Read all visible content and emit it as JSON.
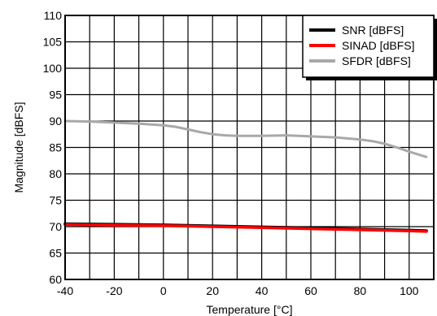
{
  "chart_data": {
    "type": "line",
    "title": "",
    "xlabel": "Temperature [°C]",
    "ylabel": "Magnitude [dBFS]",
    "xlim": [
      -40,
      110
    ],
    "ylim": [
      60,
      110
    ],
    "x_ticks": [
      -40,
      -20,
      0,
      20,
      40,
      60,
      80,
      100
    ],
    "y_ticks": [
      60,
      65,
      70,
      75,
      80,
      85,
      90,
      95,
      100,
      105,
      110
    ],
    "x_tick_labels": [
      "-40",
      "-20",
      "0",
      "20",
      "40",
      "60",
      "80",
      "100"
    ],
    "y_tick_labels": [
      "60",
      "65",
      "70",
      "75",
      "80",
      "85",
      "90",
      "95",
      "100",
      "105",
      "110"
    ],
    "x_minor_step": 10,
    "grid": true,
    "legend_position": "top-right",
    "series": [
      {
        "name": "SNR [dBFS]",
        "color": "#000000",
        "x": [
          -40,
          -20,
          0,
          20,
          40,
          60,
          80,
          100,
          107
        ],
        "y": [
          70.5,
          70.4,
          70.3,
          70.1,
          69.9,
          69.7,
          69.5,
          69.3,
          69.2
        ]
      },
      {
        "name": "SINAD [dBFS]",
        "color": "#ff0000",
        "x": [
          -40,
          -20,
          0,
          20,
          40,
          60,
          80,
          100,
          107
        ],
        "y": [
          70.4,
          70.3,
          70.2,
          70.0,
          69.8,
          69.6,
          69.4,
          69.2,
          69.1
        ]
      },
      {
        "name": "SFDR [dBFS]",
        "color": "#a8a8a8",
        "x": [
          -40,
          -30,
          -20,
          -10,
          0,
          5,
          10,
          15,
          20,
          25,
          30,
          40,
          50,
          60,
          70,
          80,
          85,
          90,
          95,
          100,
          107
        ],
        "y": [
          90.0,
          89.9,
          89.7,
          89.5,
          89.2,
          88.9,
          88.4,
          87.9,
          87.5,
          87.3,
          87.2,
          87.2,
          87.3,
          87.1,
          86.9,
          86.5,
          86.2,
          85.7,
          85.0,
          84.2,
          83.2
        ]
      }
    ]
  }
}
